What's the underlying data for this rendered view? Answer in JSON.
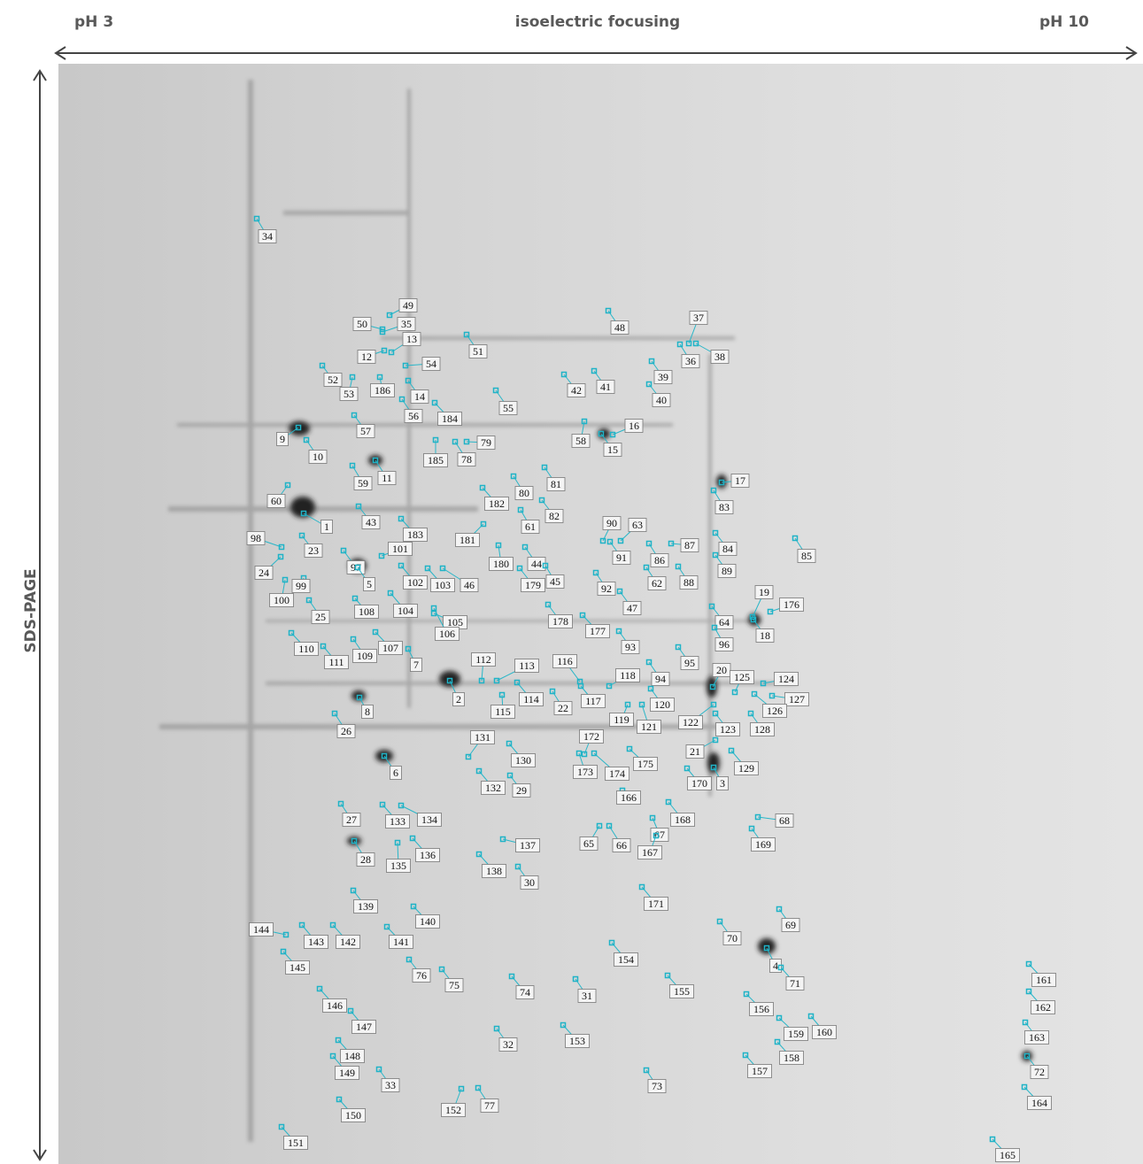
{
  "header": {
    "left": "pH 3",
    "title": "isoelectric focusing",
    "right": "pH 10"
  },
  "y_axis": "SDS-PAGE",
  "spots": [
    "34",
    "49",
    "50",
    "35",
    "13",
    "12",
    "51",
    "48",
    "37",
    "36",
    "38",
    "54",
    "52",
    "186",
    "53",
    "14",
    "42",
    "41",
    "39",
    "40",
    "55",
    "56",
    "184",
    "57",
    "16",
    "9",
    "58",
    "15",
    "79",
    "10",
    "185",
    "78",
    "11",
    "59",
    "80",
    "81",
    "17",
    "60",
    "182",
    "83",
    "82",
    "61",
    "43",
    "1",
    "183",
    "90",
    "63",
    "98",
    "181",
    "23",
    "87",
    "84",
    "85",
    "101",
    "97",
    "44",
    "91",
    "86",
    "180",
    "24",
    "89",
    "5",
    "102",
    "103",
    "46",
    "179",
    "45",
    "62",
    "88",
    "92",
    "99",
    "100",
    "19",
    "176",
    "47",
    "104",
    "108",
    "25",
    "105",
    "106",
    "178",
    "64",
    "18",
    "177",
    "96",
    "110",
    "107",
    "93",
    "109",
    "7",
    "111",
    "112",
    "95",
    "113",
    "116",
    "20",
    "125",
    "124",
    "118",
    "94",
    "2",
    "114",
    "117",
    "120",
    "127",
    "126",
    "22",
    "115",
    "8",
    "119",
    "121",
    "122",
    "26",
    "128",
    "123",
    "131",
    "172",
    "21",
    "130",
    "175",
    "129",
    "6",
    "173",
    "174",
    "170",
    "3",
    "132",
    "29",
    "166",
    "27",
    "133",
    "134",
    "68",
    "168",
    "67",
    "65",
    "66",
    "137",
    "169",
    "167",
    "28",
    "136",
    "135",
    "138",
    "30",
    "139",
    "171",
    "140",
    "69",
    "144",
    "143",
    "142",
    "141",
    "70",
    "4",
    "145",
    "154",
    "76",
    "75",
    "71",
    "161",
    "74",
    "31",
    "155",
    "146",
    "162",
    "156",
    "147",
    "160",
    "159",
    "163",
    "32",
    "153",
    "148",
    "158",
    "72",
    "149",
    "157",
    "33",
    "73",
    "77",
    "152",
    "164",
    "150",
    "151",
    "165"
  ]
}
